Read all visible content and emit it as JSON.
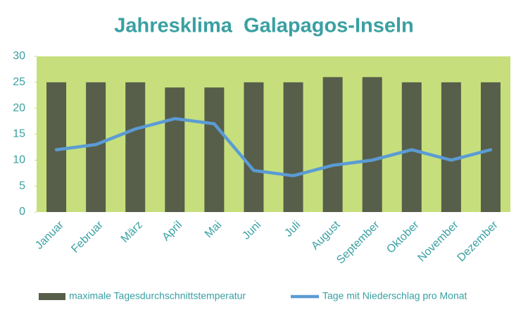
{
  "chart_data": {
    "type": "bar_line",
    "title": "Jahresklima  Galapagos-Inseln",
    "categories": [
      "Januar",
      "Februar",
      "März",
      "April",
      "Mai",
      "Juni",
      "Juli",
      "August",
      "September",
      "Oktober",
      "November",
      "Dezember"
    ],
    "series": [
      {
        "name": "maximale Tagesdurchschnittstemperatur",
        "type": "bar",
        "color": "#575e4a",
        "values": [
          25,
          25,
          25,
          24,
          24,
          25,
          25,
          26,
          26,
          25,
          25,
          25
        ]
      },
      {
        "name": "Tage mit Niederschlag pro Monat",
        "type": "line",
        "color": "#5b9bd5",
        "values": [
          12,
          13,
          16,
          18,
          17,
          8,
          7,
          9,
          10,
          12,
          10,
          12
        ]
      }
    ],
    "ylim": [
      0,
      30
    ],
    "yticks": [
      0,
      5,
      10,
      15,
      20,
      25,
      30
    ],
    "plot_background": "#c6df7c",
    "legend": "bottom"
  }
}
